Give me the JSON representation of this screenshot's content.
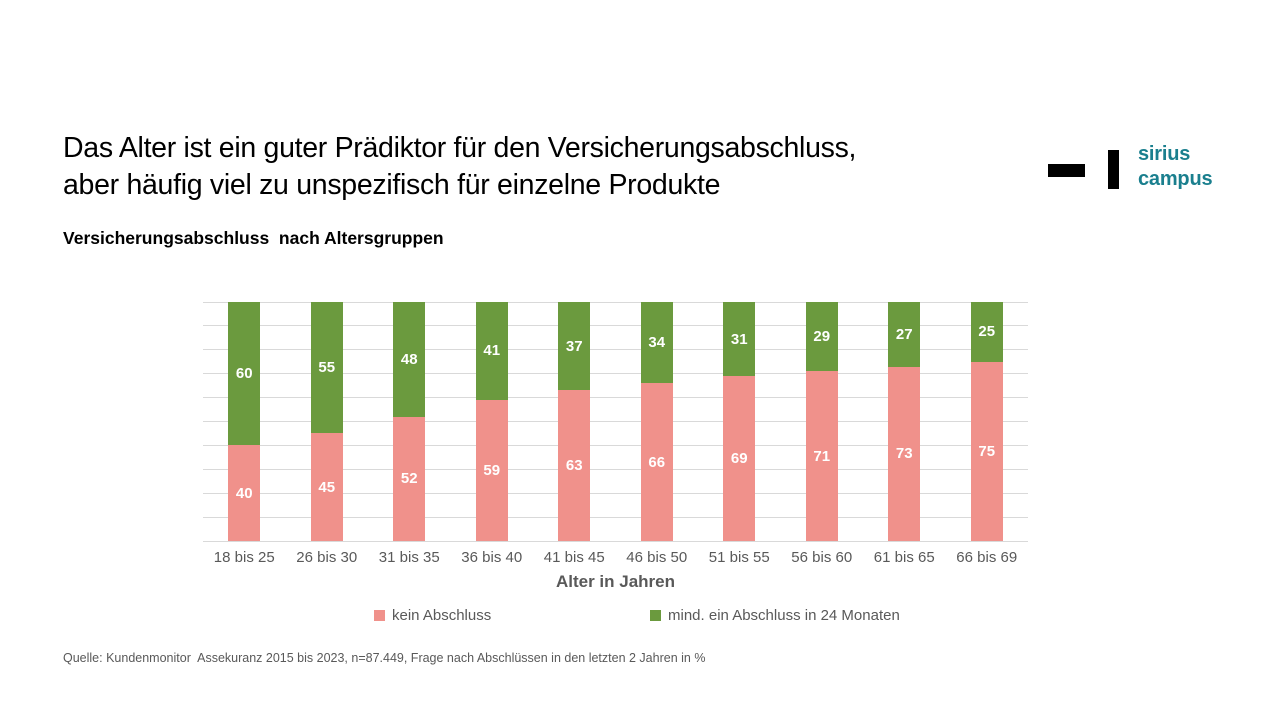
{
  "header": {
    "title_line1": "Das Alter ist ein guter Prädiktor für den Versicherungsabschluss,",
    "title_line2": "aber häufig viel zu unspezifisch für einzelne Produkte",
    "subtitle": "Versicherungsabschluss  nach Altersgruppen"
  },
  "logo": {
    "line1": "sirius",
    "line2": "campus",
    "text_color": "#1A7F8E",
    "mark_color": "#000000"
  },
  "chart_data": {
    "type": "bar",
    "stacked": true,
    "title": "Versicherungsabschluss nach Altersgruppen",
    "categories": [
      "18 bis 25",
      "26 bis 30",
      "31 bis 35",
      "36 bis 40",
      "41 bis 45",
      "46 bis 50",
      "51 bis 55",
      "56 bis 60",
      "61 bis 65",
      "66 bis 69"
    ],
    "series": [
      {
        "name": "kein Abschluss",
        "color": "#F0918B",
        "values": [
          40,
          45,
          52,
          59,
          63,
          66,
          69,
          71,
          73,
          75
        ]
      },
      {
        "name": "mind. ein Abschluss in 24 Monaten",
        "color": "#6B9A3E",
        "values": [
          60,
          55,
          48,
          41,
          37,
          34,
          31,
          29,
          27,
          25
        ]
      }
    ],
    "xlabel": "Alter in Jahren",
    "ylabel": "",
    "ylim": [
      0,
      100
    ],
    "grid": true,
    "gridline_step": 10,
    "gridline_color": "#D9D9D9",
    "value_label_color": "#FFFFFF",
    "legend_position": "bottom"
  },
  "footer": {
    "source": "Quelle: Kundenmonitor  Assekuranz 2015 bis 2023, n=87.449, Frage nach Abschlüssen in den letzten 2 Jahren in %"
  }
}
